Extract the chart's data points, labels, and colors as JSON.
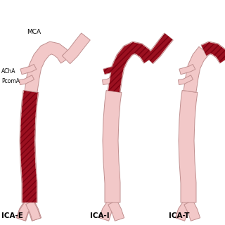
{
  "background_color": "#ffffff",
  "artery_fill": "#f2c8c8",
  "artery_stroke": "#c09090",
  "occlusion_fill": "#9b1020",
  "hatch_color": "#7a0010",
  "labels": {
    "left": "ICA-E",
    "middle": "ICA-I",
    "right": "ICA-T"
  },
  "annotations": {
    "MCA": "MCA",
    "AChA": "AChA",
    "PcomA": "PcomA"
  },
  "label_fontsize": 7.5,
  "annotation_fontsize": 5.5
}
